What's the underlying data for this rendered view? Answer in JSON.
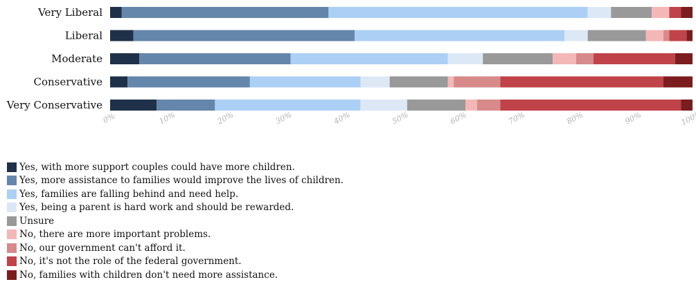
{
  "chart_data": {
    "type": "bar",
    "orientation": "horizontal",
    "stacked": true,
    "categories": [
      "Very Liberal",
      "Liberal",
      "Moderate",
      "Conservative",
      "Very Conservative"
    ],
    "x_ticks": [
      "0%",
      "10%",
      "20%",
      "30%",
      "40%",
      "50%",
      "60%",
      "70%",
      "80%",
      "90%",
      "100%"
    ],
    "xlim": [
      0,
      100
    ],
    "legend_position": "bottom-left",
    "series": [
      {
        "name": "Yes, with more support couples could have more children.",
        "color": "#1f3149",
        "values": [
          2,
          4,
          5,
          3,
          8
        ]
      },
      {
        "name": "Yes, more assistance to families would improve the lives of children.",
        "color": "#6586ab",
        "values": [
          35.5,
          38,
          26,
          21,
          10
        ]
      },
      {
        "name": "Yes, families are falling behind and need help.",
        "color": "#acd0f5",
        "values": [
          44.5,
          36,
          27,
          19,
          25
        ]
      },
      {
        "name": "Yes, being a parent is hard work and should be rewarded.",
        "color": "#dde8f6",
        "values": [
          4,
          4,
          6,
          5,
          8
        ]
      },
      {
        "name": "Unsure",
        "color": "#999999",
        "values": [
          7,
          10,
          12,
          10,
          10
        ]
      },
      {
        "name": "No, there are more important problems.",
        "color": "#f4b7b7",
        "values": [
          3,
          3,
          4,
          1,
          2
        ]
      },
      {
        "name": "No, our government can't afford it.",
        "color": "#d88a8a",
        "values": [
          0,
          1,
          3,
          8,
          4
        ]
      },
      {
        "name": "No, it's not the role of the federal government.",
        "color": "#c0434a",
        "values": [
          2,
          3,
          14,
          28,
          31
        ]
      },
      {
        "name": "No, families with children don't need more assistance.",
        "color": "#7b1d1e",
        "values": [
          2,
          1,
          3,
          5,
          2
        ]
      }
    ]
  }
}
